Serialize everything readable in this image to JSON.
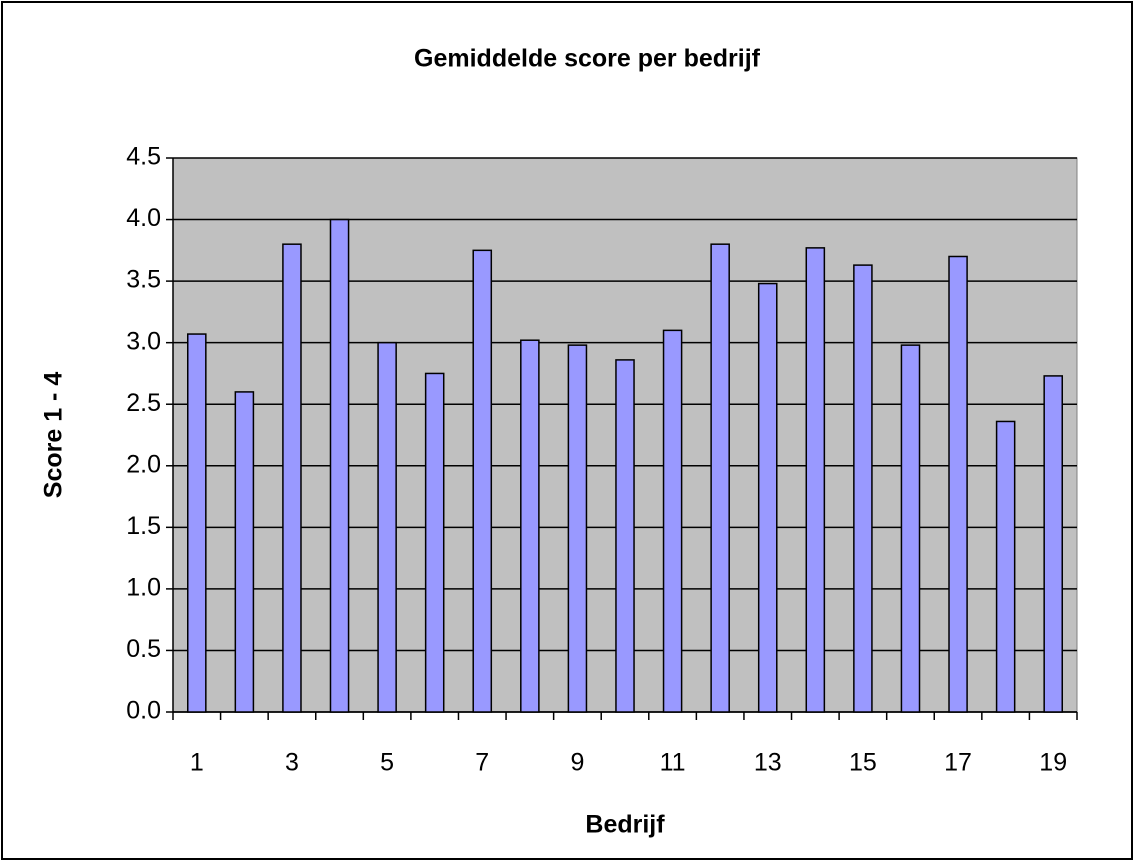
{
  "chart_data": {
    "type": "bar",
    "title": "Gemiddelde score per bedrijf",
    "x_label": "Bedrijf",
    "y_label": "Score 1 - 4",
    "categories": [
      1,
      null,
      3,
      null,
      5,
      null,
      7,
      null,
      9,
      null,
      11,
      null,
      13,
      null,
      15,
      null,
      17,
      null,
      19
    ],
    "values": [
      3.07,
      2.6,
      3.8,
      4.0,
      3.0,
      2.75,
      3.75,
      3.02,
      2.98,
      2.86,
      3.1,
      3.8,
      3.48,
      3.77,
      3.63,
      2.98,
      3.7,
      2.36,
      2.73
    ],
    "color": "#9999ff",
    "plot_background": "#c0c0c0",
    "ylim": [
      0,
      4.5
    ],
    "yticks": [
      {
        "value": 0,
        "label": "0.0"
      },
      0.5,
      {
        "value": 1,
        "label": "1.0"
      },
      1.5,
      {
        "value": 2,
        "label": "2.0"
      },
      2.5,
      {
        "value": 3,
        "label": "3.0"
      },
      3.5,
      {
        "value": 4,
        "label": "4.0"
      },
      4.5
    ],
    "grid": true
  }
}
